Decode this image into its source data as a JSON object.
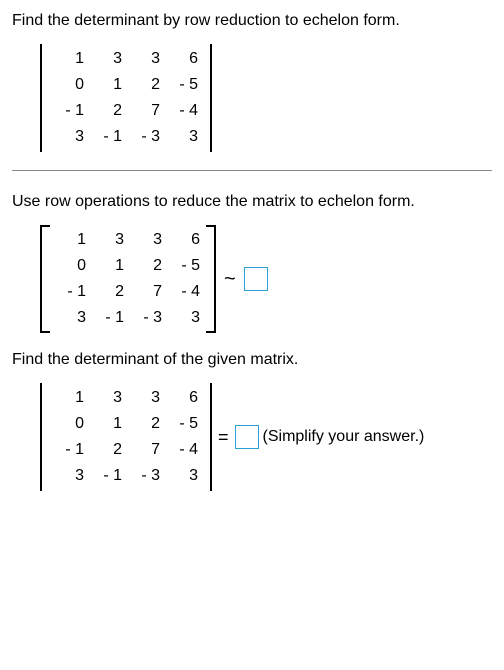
{
  "title": "Find the determinant by row reduction to echelon form.",
  "matrix": {
    "rows": [
      [
        "1",
        "3",
        "3",
        "6"
      ],
      [
        "0",
        "1",
        "2",
        "- 5"
      ],
      [
        "- 1",
        "2",
        "7",
        "- 4"
      ],
      [
        "3",
        "- 1",
        "- 3",
        "3"
      ]
    ]
  },
  "part1": {
    "text": "Use row operations to reduce the matrix to echelon form.",
    "tilde": "~",
    "box_border_color": "#2aa1d3"
  },
  "part2": {
    "text": "Find the determinant of the given matrix.",
    "equals": "=",
    "hint": "(Simplify your answer.)",
    "box_border_color": "#2aa1d3"
  }
}
